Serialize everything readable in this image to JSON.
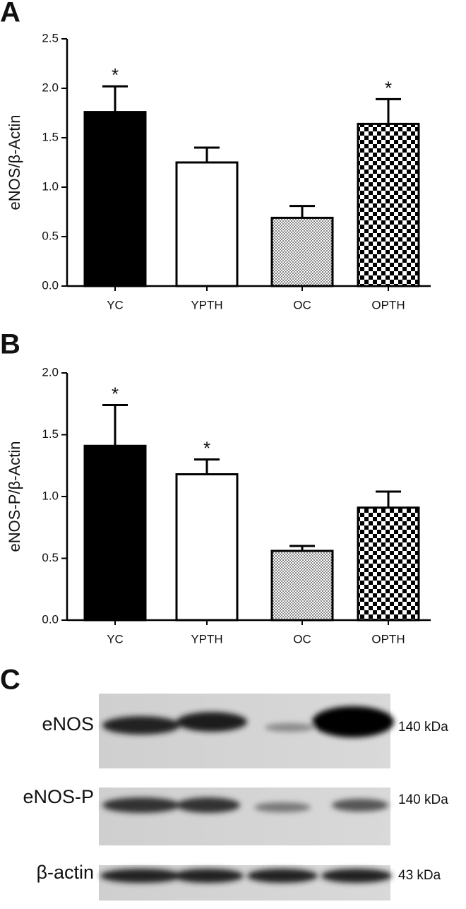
{
  "chart_data": [
    {
      "type": "bar",
      "panel": "A",
      "y_label": "eNOS/β-Actin",
      "categories": [
        "YC",
        "YPTH",
        "OC",
        "OPTH"
      ],
      "values": [
        1.76,
        1.25,
        0.69,
        1.64
      ],
      "errors": [
        0.26,
        0.15,
        0.12,
        0.25
      ],
      "annotations": [
        "*",
        null,
        null,
        "*"
      ],
      "patterns": [
        "solid",
        "white",
        "dotted",
        "checkered"
      ],
      "ylim": [
        0,
        2.5
      ],
      "yticks": [
        {
          "value": 0,
          "label": "0.0"
        },
        0.5,
        {
          "value": 1,
          "label": "1.0"
        },
        1.5,
        {
          "value": 2,
          "label": "2.0"
        },
        2.5
      ]
    },
    {
      "type": "bar",
      "panel": "B",
      "y_label": "eNOS-P/β-Actin",
      "categories": [
        "YC",
        "YPTH",
        "OC",
        "OPTH"
      ],
      "values": [
        1.41,
        1.18,
        0.56,
        0.91
      ],
      "errors": [
        0.33,
        0.12,
        0.04,
        0.13
      ],
      "annotations": [
        "*",
        "*",
        null,
        null
      ],
      "patterns": [
        "solid",
        "white",
        "dotted",
        "checkered"
      ],
      "ylim": [
        0,
        2
      ],
      "yticks": [
        {
          "value": 0,
          "label": "0.0"
        },
        0.5,
        {
          "value": 1,
          "label": "1.0"
        },
        1.5,
        {
          "value": 2,
          "label": "2.0"
        }
      ]
    }
  ],
  "blot": {
    "panel": "C",
    "rows": [
      {
        "label": "eNOS",
        "size": "140 kDa"
      },
      {
        "label": "eNOS-P",
        "size": "140 kDa"
      },
      {
        "label": "β-actin",
        "size": "43 kDa"
      }
    ]
  }
}
